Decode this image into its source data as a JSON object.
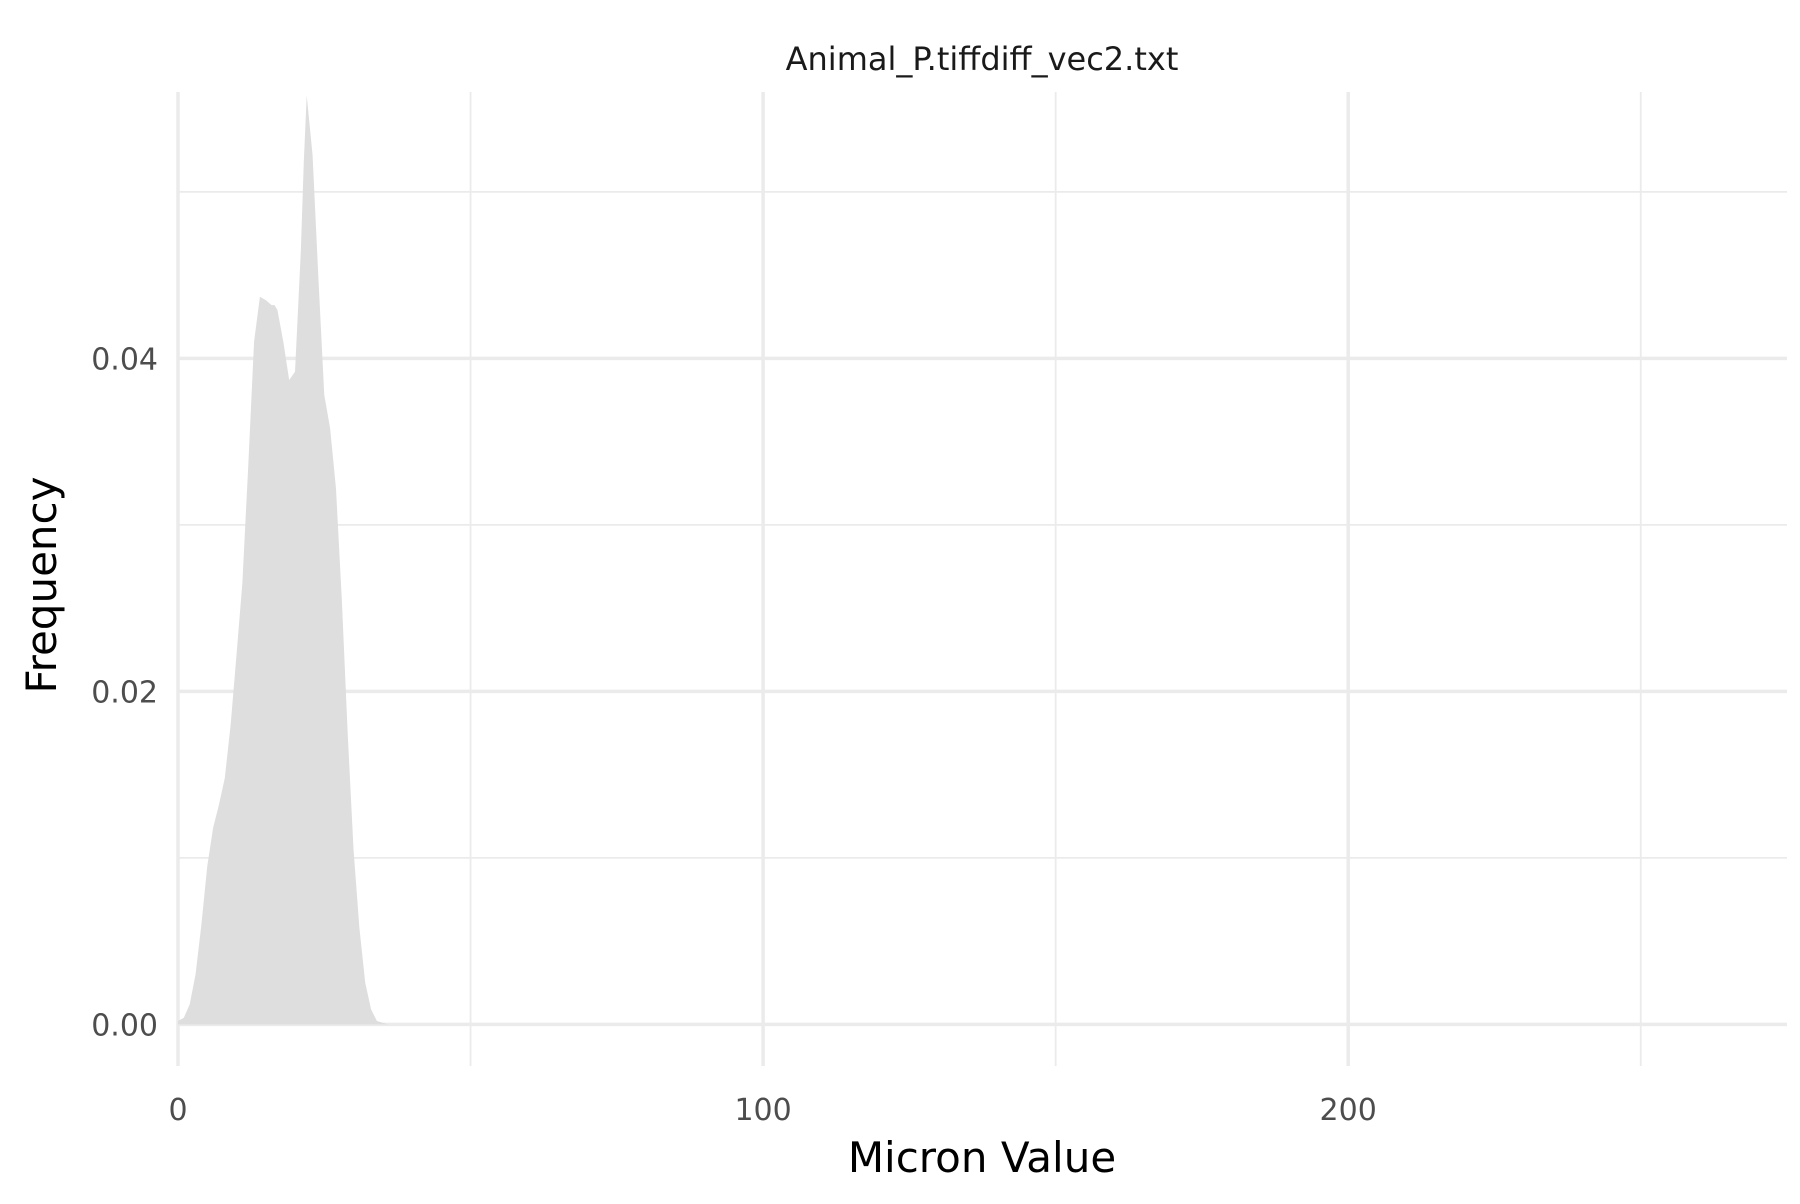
{
  "chart_data": {
    "type": "area",
    "title": "Animal_P.tiffdiff_vec2.txt",
    "xlabel": "Micron Value",
    "ylabel": "Frequency",
    "xlim": [
      0,
      275
    ],
    "ylim": [
      -0.0025,
      0.056
    ],
    "x_ticks": [
      0,
      100,
      200
    ],
    "x_tick_labels": [
      "0",
      "100",
      "200"
    ],
    "x_minor": [
      50,
      150,
      250
    ],
    "y_ticks": [
      0.0,
      0.02,
      0.04
    ],
    "y_tick_labels": [
      "0.00",
      "0.02",
      "0.04"
    ],
    "y_minor": [
      0.01,
      0.03,
      0.05
    ],
    "grid": true,
    "legend": "none",
    "fill_color": "#dedede",
    "series": [
      {
        "x": [
          0,
          1,
          2,
          3,
          4,
          5,
          6,
          7,
          8,
          9,
          10,
          11,
          12,
          13,
          14,
          15,
          16,
          16.5,
          17,
          18,
          19,
          20,
          21,
          21.5,
          22,
          23,
          24,
          25,
          25.5,
          26,
          27,
          28,
          29,
          30,
          31,
          32,
          33,
          34,
          35,
          36,
          37,
          38,
          39,
          40
        ],
        "y": [
          0.0002,
          0.0004,
          0.0012,
          0.003,
          0.006,
          0.0095,
          0.0118,
          0.0132,
          0.0148,
          0.018,
          0.0222,
          0.0265,
          0.0335,
          0.041,
          0.0437,
          0.0435,
          0.0432,
          0.0432,
          0.0429,
          0.041,
          0.0387,
          0.0392,
          0.0465,
          0.0518,
          0.0558,
          0.0522,
          0.0448,
          0.0378,
          0.0368,
          0.0358,
          0.0322,
          0.0255,
          0.0175,
          0.0105,
          0.0058,
          0.0025,
          0.0009,
          0.0002,
          0.0001,
          0.0,
          0.0,
          0.0,
          0.0,
          0.0
        ]
      }
    ]
  }
}
